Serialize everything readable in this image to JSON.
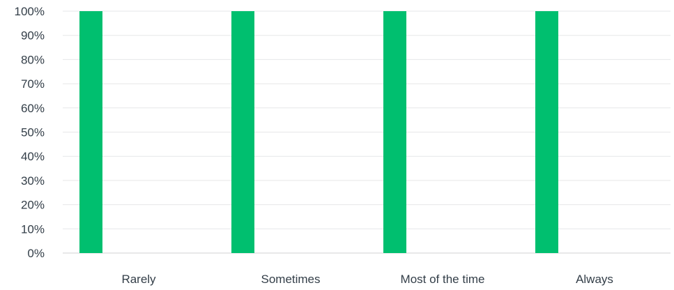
{
  "chart_data": {
    "type": "bar",
    "categories": [
      "Rarely",
      "Sometimes",
      "Most of the time",
      "Always"
    ],
    "values": [
      100,
      100,
      100,
      100
    ],
    "ylim": [
      0,
      100
    ],
    "yticks": [
      "0%",
      "10%",
      "20%",
      "30%",
      "40%",
      "50%",
      "60%",
      "70%",
      "80%",
      "90%",
      "100%"
    ],
    "grid": true,
    "bar_color": "#00bf6f",
    "title": "",
    "xlabel": "",
    "ylabel": ""
  }
}
